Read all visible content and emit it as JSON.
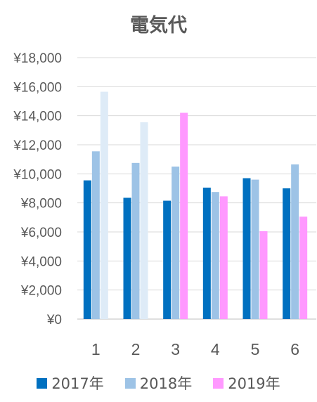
{
  "chart_data": {
    "type": "bar",
    "title": "電気代",
    "categories": [
      "1",
      "2",
      "3",
      "4",
      "5",
      "6"
    ],
    "ylim": [
      0,
      18000
    ],
    "yticks": [
      "¥0",
      "¥2,000",
      "¥4,000",
      "¥6,000",
      "¥8,000",
      "¥10,000",
      "¥12,000",
      "¥14,000",
      "¥16,000",
      "¥18,000"
    ],
    "grid": true,
    "legend_position": "bottom",
    "series": [
      {
        "name": "2017年",
        "color": "#0070C0",
        "values": [
          9550,
          8350,
          8150,
          9050,
          9700,
          9000
        ]
      },
      {
        "name": "2018年",
        "color": "#9DC3E6",
        "values": [
          11550,
          10750,
          10500,
          8750,
          9600,
          10650
        ]
      },
      {
        "name": "2019年",
        "color": "#FF99FF",
        "values": [
          15650,
          13550,
          14200,
          8450,
          6050,
          7050
        ]
      }
    ],
    "bar_colors_override": {
      "2019年": {
        "0": "#DEEBF7",
        "1": "#DEEBF7"
      }
    }
  }
}
